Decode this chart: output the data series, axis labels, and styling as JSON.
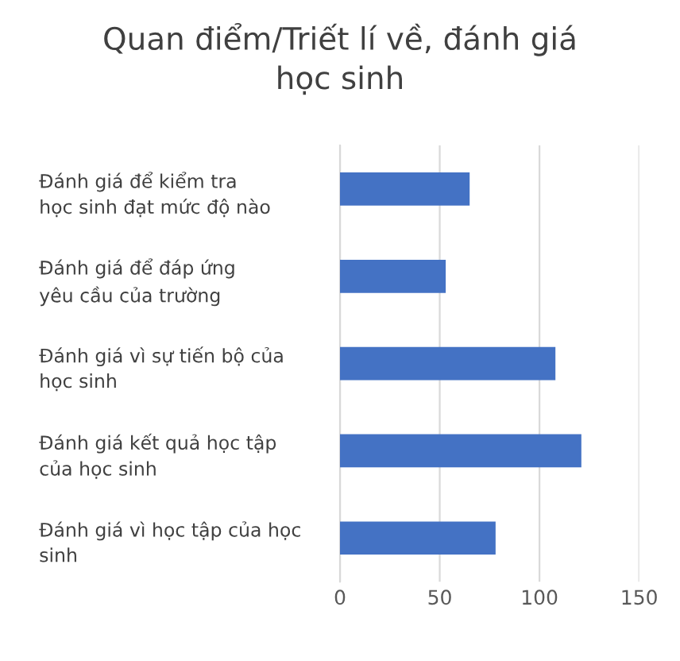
{
  "chart_data": {
    "type": "bar",
    "orientation": "horizontal",
    "title": "Quan điểm/Triết lí về, đánh giá\nhọc sinh",
    "categories": [
      "Đánh giá để kiểm tra\nhọc sinh đạt mức độ nào",
      "Đánh giá để đáp ứng\nyêu cầu của trường",
      "Đánh giá vì sự tiến bộ của\nhọc sinh",
      "Đánh giá kết quả học tập\ncủa học sinh",
      "Đánh giá vì học tập của học\nsinh"
    ],
    "values": [
      65,
      53,
      108,
      121,
      78
    ],
    "color": "#4472c4",
    "xlim": [
      0,
      150
    ],
    "xticks": [
      0,
      50,
      100,
      150
    ],
    "grid": "x",
    "legend": false
  }
}
